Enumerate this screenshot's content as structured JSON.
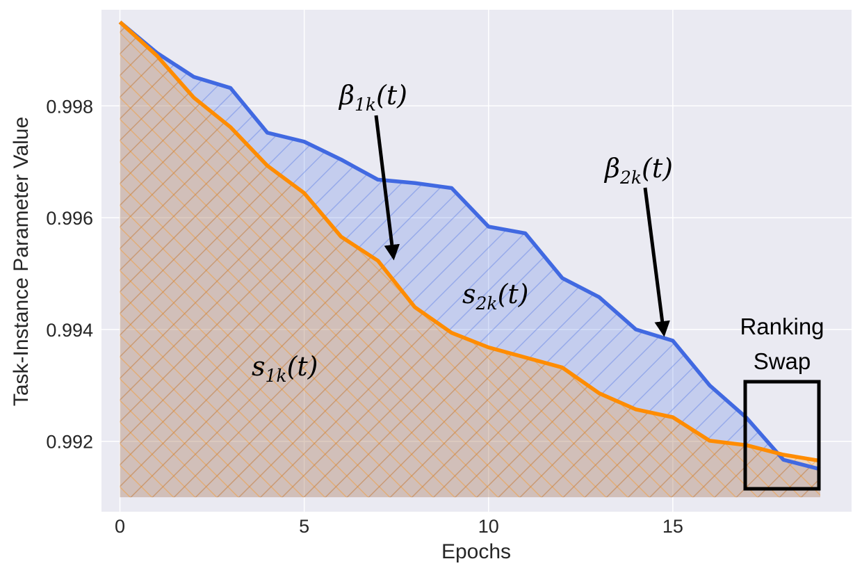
{
  "chart_data": {
    "type": "area",
    "xlabel": "Epochs",
    "ylabel": "Task-Instance Parameter Value",
    "xlim": [
      -0.5,
      19.85
    ],
    "ylim": [
      0.99074,
      0.99972
    ],
    "x_ticks": [
      0,
      5,
      10,
      15
    ],
    "y_ticks": [
      0.992,
      0.994,
      0.996,
      0.998
    ],
    "x_tick_labels": [
      "0",
      "5",
      "10",
      "15"
    ],
    "y_tick_labels": [
      "0.992",
      "0.994",
      "0.996",
      "0.998"
    ],
    "grid": true,
    "fill_baseline": 0.991,
    "series": [
      {
        "key": "beta2",
        "color": "#4169e1",
        "fill_color": "#4169e1",
        "hatch": "/",
        "x": [
          0,
          1,
          2,
          3,
          4,
          5,
          6,
          7,
          8,
          9,
          10,
          11,
          12,
          13,
          14,
          15,
          16,
          17,
          18,
          19
        ],
        "values": [
          0.9995,
          0.99895,
          0.99852,
          0.99832,
          0.99752,
          0.99736,
          0.99704,
          0.99668,
          0.99662,
          0.99653,
          0.99584,
          0.99572,
          0.99492,
          0.99458,
          0.994,
          0.9938,
          0.993,
          0.99242,
          0.99167,
          0.9915
        ]
      },
      {
        "key": "beta1",
        "color": "#ff8c00",
        "fill_color": "#ff8c00",
        "hatch": "x",
        "x": [
          0,
          1,
          2,
          3,
          4,
          5,
          6,
          7,
          8,
          9,
          10,
          11,
          12,
          13,
          14,
          15,
          16,
          17,
          18,
          19
        ],
        "values": [
          0.9995,
          0.9989,
          0.99815,
          0.99762,
          0.99693,
          0.99644,
          0.99566,
          0.99523,
          0.9944,
          0.99394,
          0.99368,
          0.9935,
          0.99332,
          0.99286,
          0.99257,
          0.99243,
          0.99201,
          0.99193,
          0.99176,
          0.99165
        ]
      }
    ],
    "annotations": {
      "beta1": {
        "base": "β",
        "sub": "1k",
        "arg": "(t)"
      },
      "beta2": {
        "base": "β",
        "sub": "2k",
        "arg": "(t)"
      },
      "s1": {
        "base": "s",
        "sub": "1k",
        "arg": "(t)"
      },
      "s2": {
        "base": "s",
        "sub": "2k",
        "arg": "(t)"
      },
      "ranking_swap": [
        "Ranking",
        "Swap"
      ]
    }
  }
}
